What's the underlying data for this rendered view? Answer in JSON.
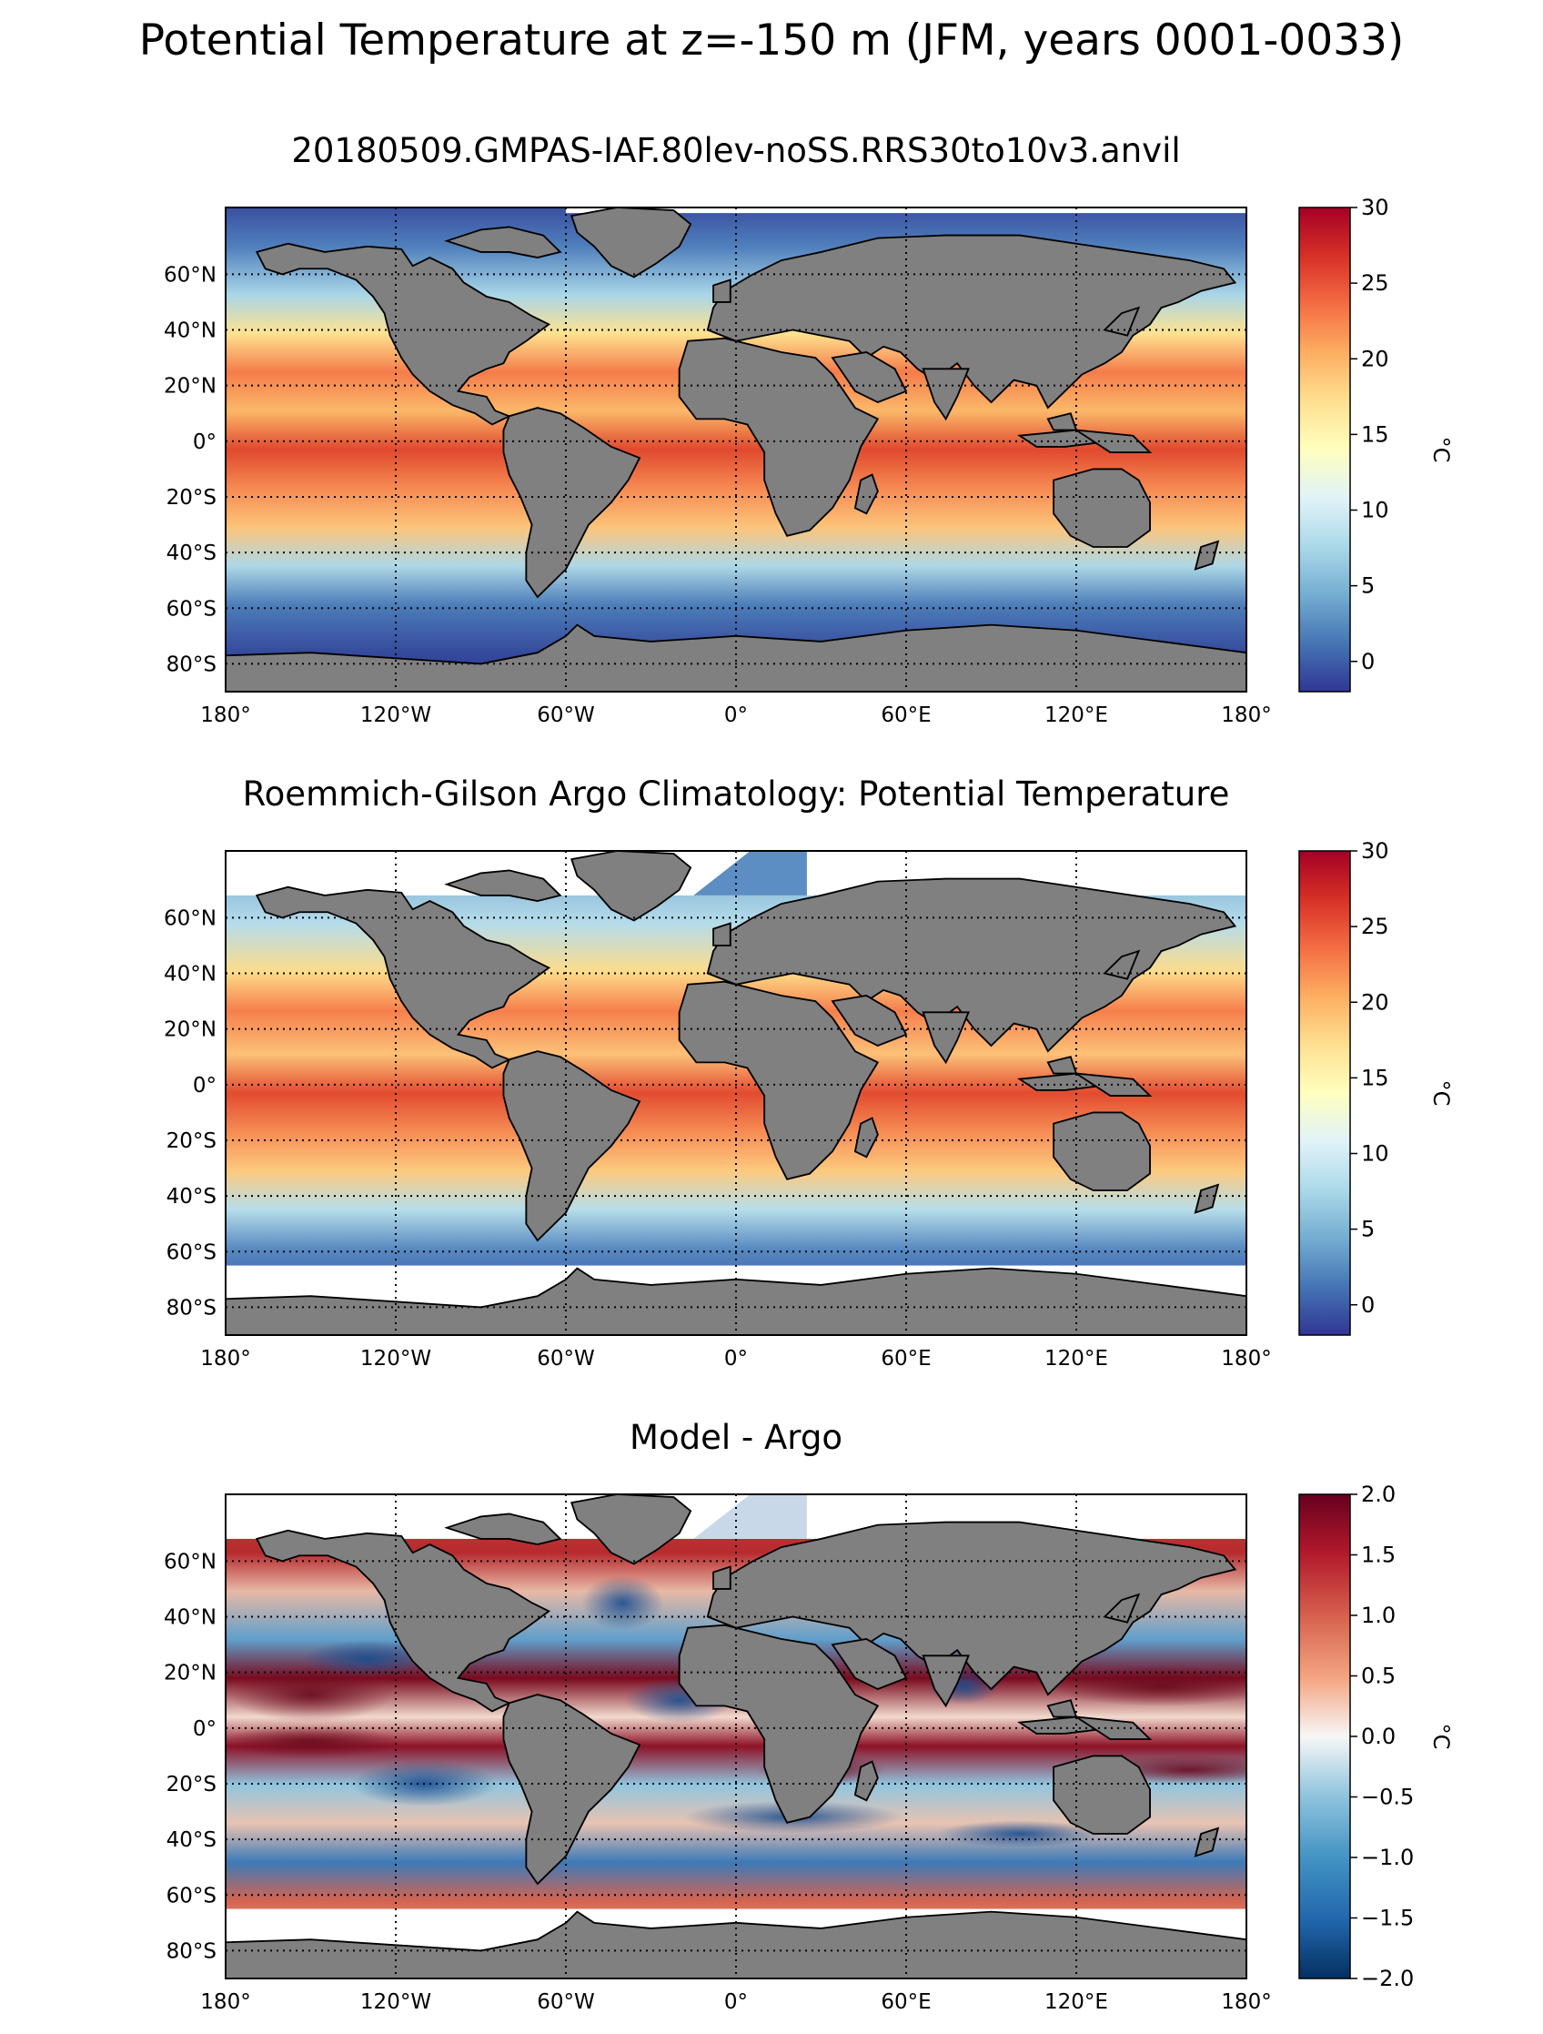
{
  "figure": {
    "suptitle": "Potential Temperature at z=-150 m (JFM, years 0001-0033)"
  },
  "panels": [
    {
      "id": "model",
      "title": "20180509.GMPAS-IAF.80lev-noSS.RRS30to10v3.anvil",
      "colormap": "RdYlBu_r",
      "colorbar": {
        "label": "°C",
        "min": -2,
        "max": 30,
        "ticks": [
          "30",
          "25",
          "20",
          "15",
          "10",
          "5",
          "0"
        ]
      },
      "sea_ice_mask": "north-arctic"
    },
    {
      "id": "obs",
      "title": "Roemmich-Gilson Argo Climatology: Potential Temperature",
      "colormap": "RdYlBu_r",
      "colorbar": {
        "label": "°C",
        "min": -2,
        "max": 30,
        "ticks": [
          "30",
          "25",
          "20",
          "15",
          "10",
          "5",
          "0"
        ]
      },
      "data_coverage": "65°S to arctic shelf only"
    },
    {
      "id": "diff",
      "title": "Model - Argo",
      "colormap": "RdBu_r",
      "colorbar": {
        "label": "°C",
        "min": -2.0,
        "max": 2.0,
        "ticks": [
          "2.0",
          "1.5",
          "1.0",
          "0.5",
          "0.0",
          "−0.5",
          "−1.0",
          "−1.5",
          "−2.0"
        ]
      },
      "data_coverage": "65°S to arctic shelf only"
    }
  ],
  "axes": {
    "lat_ticks": [
      "60°N",
      "40°N",
      "20°N",
      "0°",
      "20°S",
      "40°S",
      "60°S",
      "80°S"
    ],
    "lon_ticks": [
      "180°",
      "120°W",
      "60°W",
      "0°",
      "60°E",
      "120°E",
      "180°"
    ]
  },
  "colors": {
    "land": "#808080",
    "coastline": "#000000",
    "missing_data": "#ffffff"
  }
}
